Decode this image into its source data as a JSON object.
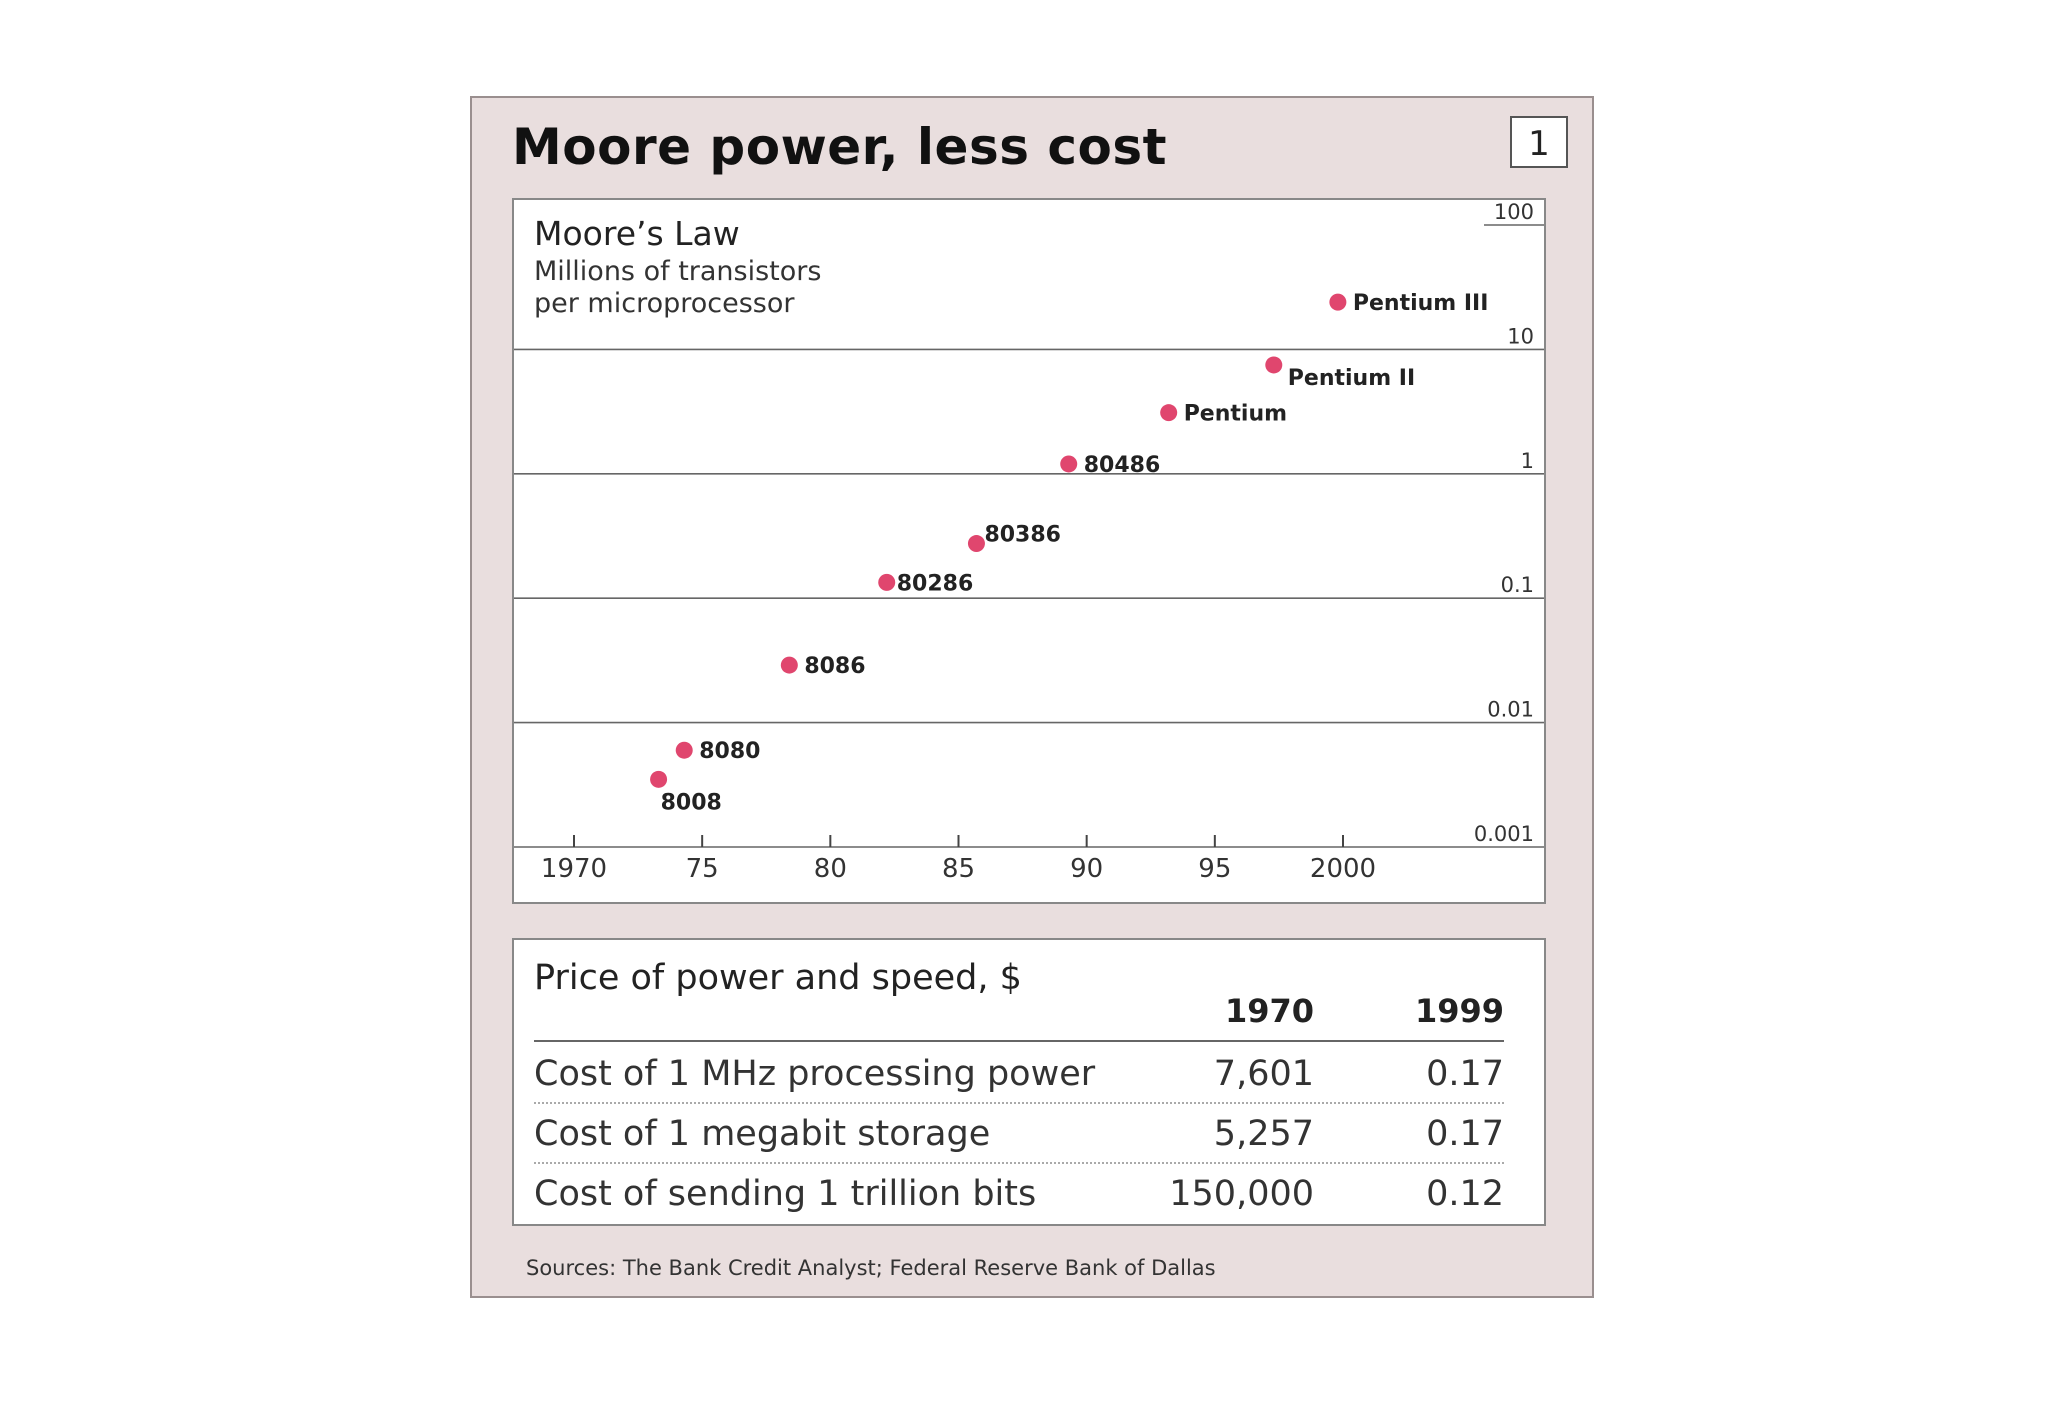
{
  "panel": {
    "title": "Moore power, less cost",
    "number": "1",
    "sources": "Sources: The Bank Credit Analyst; Federal Reserve Bank of Dallas"
  },
  "chart_data": {
    "type": "scatter",
    "title": "Moore’s Law",
    "subtitle": "Millions of transistors\nper microprocessor",
    "y_scale": "log",
    "ylim": [
      0.001,
      100
    ],
    "xlim": [
      1970,
      2007
    ],
    "x_ticks": [
      {
        "value": 1970,
        "label": "1970"
      },
      {
        "value": 1975,
        "label": "75"
      },
      {
        "value": 1980,
        "label": "80"
      },
      {
        "value": 1985,
        "label": "85"
      },
      {
        "value": 1990,
        "label": "90"
      },
      {
        "value": 1995,
        "label": "95"
      },
      {
        "value": 2000,
        "label": "2000"
      }
    ],
    "y_ticks": [
      {
        "value": 100,
        "label": "100"
      },
      {
        "value": 10,
        "label": "10"
      },
      {
        "value": 1,
        "label": "1"
      },
      {
        "value": 0.1,
        "label": "0.1"
      },
      {
        "value": 0.01,
        "label": "0.01"
      },
      {
        "value": 0.001,
        "label": "0.001"
      }
    ],
    "grid": "horizontal",
    "point_color": "#e0466e",
    "points": [
      {
        "label": "8008",
        "x": 1973.3,
        "y": 0.0035
      },
      {
        "label": "8080",
        "x": 1974.3,
        "y": 0.006
      },
      {
        "label": "8086",
        "x": 1978.4,
        "y": 0.029
      },
      {
        "label": "80286",
        "x": 1982.2,
        "y": 0.134
      },
      {
        "label": "80386",
        "x": 1985.7,
        "y": 0.275
      },
      {
        "label": "80486",
        "x": 1989.3,
        "y": 1.2
      },
      {
        "label": "Pentium",
        "x": 1993.2,
        "y": 3.1
      },
      {
        "label": "Pentium II",
        "x": 1997.3,
        "y": 7.5
      },
      {
        "label": "Pentium III",
        "x": 1999.8,
        "y": 24
      }
    ]
  },
  "price_table": {
    "title": "Price of power and speed, $",
    "columns": [
      "1970",
      "1999"
    ],
    "rows": [
      {
        "label": "Cost of 1 MHz processing power",
        "v1970": "7,601",
        "v1999": "0.17"
      },
      {
        "label": "Cost of 1 megabit storage",
        "v1970": "5,257",
        "v1999": "0.17"
      },
      {
        "label": "Cost of sending 1 trillion bits",
        "v1970": "150,000",
        "v1999": "0.12"
      }
    ]
  }
}
